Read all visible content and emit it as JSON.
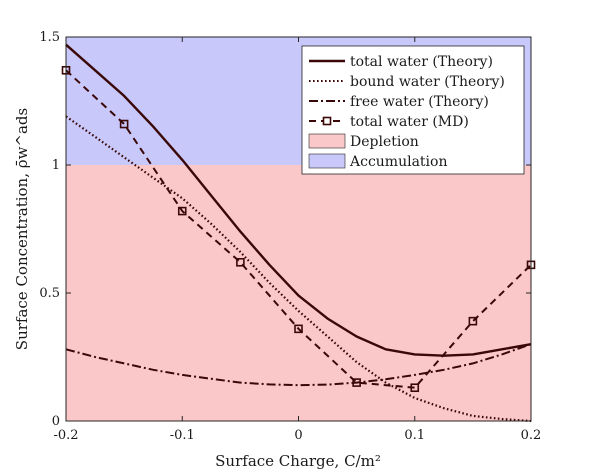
{
  "chart_data": {
    "type": "line",
    "xlabel": "Surface Charge, C/m²",
    "ylabel": "Surface Concentration, ρ̄w^ads",
    "xlim": [
      -0.2,
      0.2
    ],
    "ylim": [
      0,
      1.5
    ],
    "xticks": [
      "-0.2",
      "-0.1",
      "0",
      "0.1",
      "0.2"
    ],
    "yticks": [
      "0",
      "0.5",
      "1",
      "1.5"
    ],
    "regions": [
      {
        "name": "Accumulation",
        "y0": 1.0,
        "y1": 1.5,
        "color": "#c8c8fa"
      },
      {
        "name": "Depletion",
        "y0": 0.0,
        "y1": 1.0,
        "color": "#fac8c8"
      }
    ],
    "legend_position": "top-right",
    "series": [
      {
        "name": "total water (Theory)",
        "style": "solid",
        "color": "#3a0808",
        "x": [
          -0.2,
          -0.175,
          -0.15,
          -0.125,
          -0.1,
          -0.075,
          -0.05,
          -0.025,
          0.0,
          0.025,
          0.05,
          0.075,
          0.1,
          0.125,
          0.15,
          0.175,
          0.2
        ],
        "y": [
          1.47,
          1.37,
          1.27,
          1.15,
          1.02,
          0.88,
          0.74,
          0.61,
          0.49,
          0.4,
          0.33,
          0.28,
          0.26,
          0.255,
          0.26,
          0.28,
          0.3
        ]
      },
      {
        "name": "bound water (Theory)",
        "style": "dotted",
        "color": "#3a0808",
        "x": [
          -0.2,
          -0.175,
          -0.15,
          -0.125,
          -0.1,
          -0.075,
          -0.05,
          -0.025,
          0.0,
          0.025,
          0.05,
          0.075,
          0.1,
          0.125,
          0.15,
          0.175,
          0.2
        ],
        "y": [
          1.19,
          1.11,
          1.03,
          0.95,
          0.87,
          0.77,
          0.66,
          0.54,
          0.43,
          0.33,
          0.23,
          0.15,
          0.09,
          0.05,
          0.02,
          0.008,
          0.0
        ]
      },
      {
        "name": "free water (Theory)",
        "style": "dashdot",
        "color": "#3a0808",
        "x": [
          -0.2,
          -0.175,
          -0.15,
          -0.125,
          -0.1,
          -0.075,
          -0.05,
          -0.025,
          0.0,
          0.025,
          0.05,
          0.075,
          0.1,
          0.125,
          0.15,
          0.175,
          0.2
        ],
        "y": [
          0.28,
          0.25,
          0.225,
          0.2,
          0.18,
          0.165,
          0.15,
          0.143,
          0.14,
          0.142,
          0.15,
          0.163,
          0.18,
          0.2,
          0.225,
          0.26,
          0.3
        ]
      },
      {
        "name": "total water (MD)",
        "style": "dashed-square",
        "color": "#3a0808",
        "x": [
          -0.2,
          -0.15,
          -0.1,
          -0.05,
          0.0,
          0.05,
          0.1,
          0.15,
          0.2
        ],
        "y": [
          1.37,
          1.16,
          0.82,
          0.62,
          0.36,
          0.15,
          0.13,
          0.39,
          0.61
        ]
      }
    ]
  }
}
